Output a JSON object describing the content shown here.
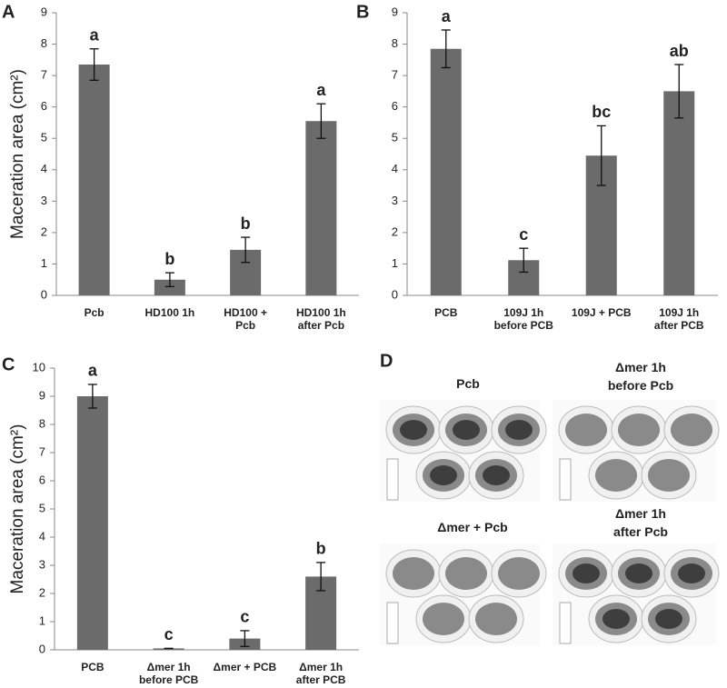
{
  "chart_data": [
    {
      "type": "bar",
      "panel_label": "A",
      "y_label": "Maceration area (cm²)",
      "categories": [
        "Pcb",
        "HD100 1h",
        "HD100 +\nPcb",
        "HD100 1h\nafter Pcb"
      ],
      "values": [
        7.35,
        0.5,
        1.45,
        5.55
      ],
      "errors": [
        0.5,
        0.22,
        0.4,
        0.55
      ],
      "significance_letters": [
        "a",
        "b",
        "b",
        "a"
      ],
      "color": "#6b6b6b",
      "ylim": [
        0,
        9
      ],
      "yticks": [
        0,
        1,
        2,
        3,
        4,
        5,
        6,
        7,
        8,
        9
      ]
    },
    {
      "type": "bar",
      "panel_label": "B",
      "categories": [
        "PCB",
        "109J 1h\nbefore PCB",
        "109J + PCB",
        "109J 1h\nafter PCB"
      ],
      "values": [
        7.85,
        1.12,
        4.45,
        6.5
      ],
      "errors": [
        0.6,
        0.38,
        0.95,
        0.85
      ],
      "significance_letters": [
        "a",
        "c",
        "bc",
        "ab"
      ],
      "color": "#6b6b6b",
      "ylim": [
        0,
        9
      ],
      "yticks": [
        0,
        1,
        2,
        3,
        4,
        5,
        6,
        7,
        8,
        9
      ]
    },
    {
      "type": "bar",
      "panel_label": "C",
      "y_label": "Maceration area (cm²)",
      "categories": [
        "PCB",
        "Δmer 1h\nbefore PCB",
        "Δmer + PCB",
        "Δmer 1h\nafter PCB"
      ],
      "values": [
        9.0,
        0.05,
        0.4,
        2.6
      ],
      "errors": [
        0.42,
        0.0,
        0.28,
        0.5
      ],
      "significance_letters": [
        "a",
        "c",
        "c",
        "b"
      ],
      "color": "#6b6b6b",
      "ylim": [
        0,
        10
      ],
      "yticks": [
        0,
        1,
        2,
        3,
        4,
        5,
        6,
        7,
        8,
        9,
        10
      ]
    }
  ],
  "photo_panel": {
    "panel_label": "D",
    "captions": [
      "Pcb",
      "Δmer 1h\nbefore Pcb",
      "Δmer + Pcb",
      "Δmer 1h\nafter Pcb"
    ]
  }
}
